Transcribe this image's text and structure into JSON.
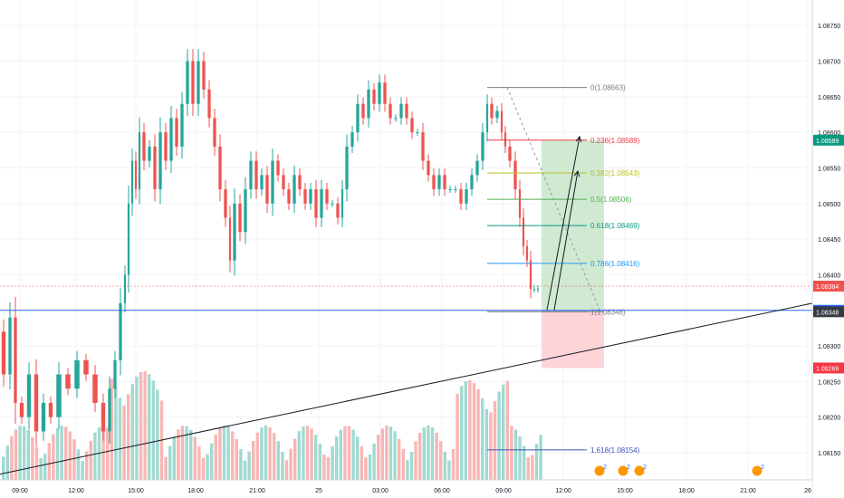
{
  "chart_data": {
    "type": "candlestick",
    "x_axis": {
      "tick_labels": [
        "09:00",
        "12:00",
        "15:00",
        "18:00",
        "21:00",
        "25",
        "03:00",
        "06:00",
        "09:00",
        "12:00",
        "15:00",
        "18:00",
        "21:00",
        "26"
      ]
    },
    "y_axis": {
      "min": 1.0812,
      "max": 1.0878,
      "tick_labels": [
        "1.08750",
        "1.08700",
        "1.08650",
        "1.08600",
        "1.08550",
        "1.08500",
        "1.08450",
        "1.08400",
        "1.08300",
        "1.08250",
        "1.08200",
        "1.08150"
      ]
    },
    "price_tags": [
      {
        "label": "1.08589",
        "value": 1.08589,
        "color": "#089981"
      },
      {
        "label": "1.08384",
        "value": 1.08384,
        "color": "#ef5350"
      },
      {
        "label": "1.08350",
        "value": 1.0835,
        "color": "#2962ff"
      },
      {
        "label": "1.08348",
        "value": 1.08348,
        "color": "#363a45"
      },
      {
        "label": "1.08269",
        "value": 1.08269,
        "color": "#f23645"
      }
    ],
    "fibonacci": [
      {
        "label": "0(1.08663)",
        "value": 1.08663,
        "color": "#787b86"
      },
      {
        "label": "0.236(1.08589)",
        "value": 1.08589,
        "color": "#f23645"
      },
      {
        "label": "0.382(1.08543)",
        "value": 1.08543,
        "color": "#b7c21e"
      },
      {
        "label": "0.5(1.08506)",
        "value": 1.08506,
        "color": "#4caf50"
      },
      {
        "label": "0.618(1.08469)",
        "value": 1.08469,
        "color": "#089981"
      },
      {
        "label": "0.786(1.08416)",
        "value": 1.08416,
        "color": "#2196f3"
      },
      {
        "label": "1(1.08348)",
        "value": 1.08348,
        "color": "#787b86"
      },
      {
        "label": "1.618(1.08154)",
        "value": 1.08154,
        "color": "#3f51b5"
      }
    ],
    "position_tool": {
      "entry": 1.08348,
      "target": 1.08589,
      "stop": 1.08269
    },
    "trendline": {
      "from": 1.0812,
      "to": 1.0836
    },
    "event_badges": [
      "2",
      "2",
      "2",
      "2"
    ],
    "colors": {
      "up": "#26a69a",
      "down": "#ef5350",
      "profit": "#c8e6c9",
      "loss": "#ffcdd2"
    }
  }
}
